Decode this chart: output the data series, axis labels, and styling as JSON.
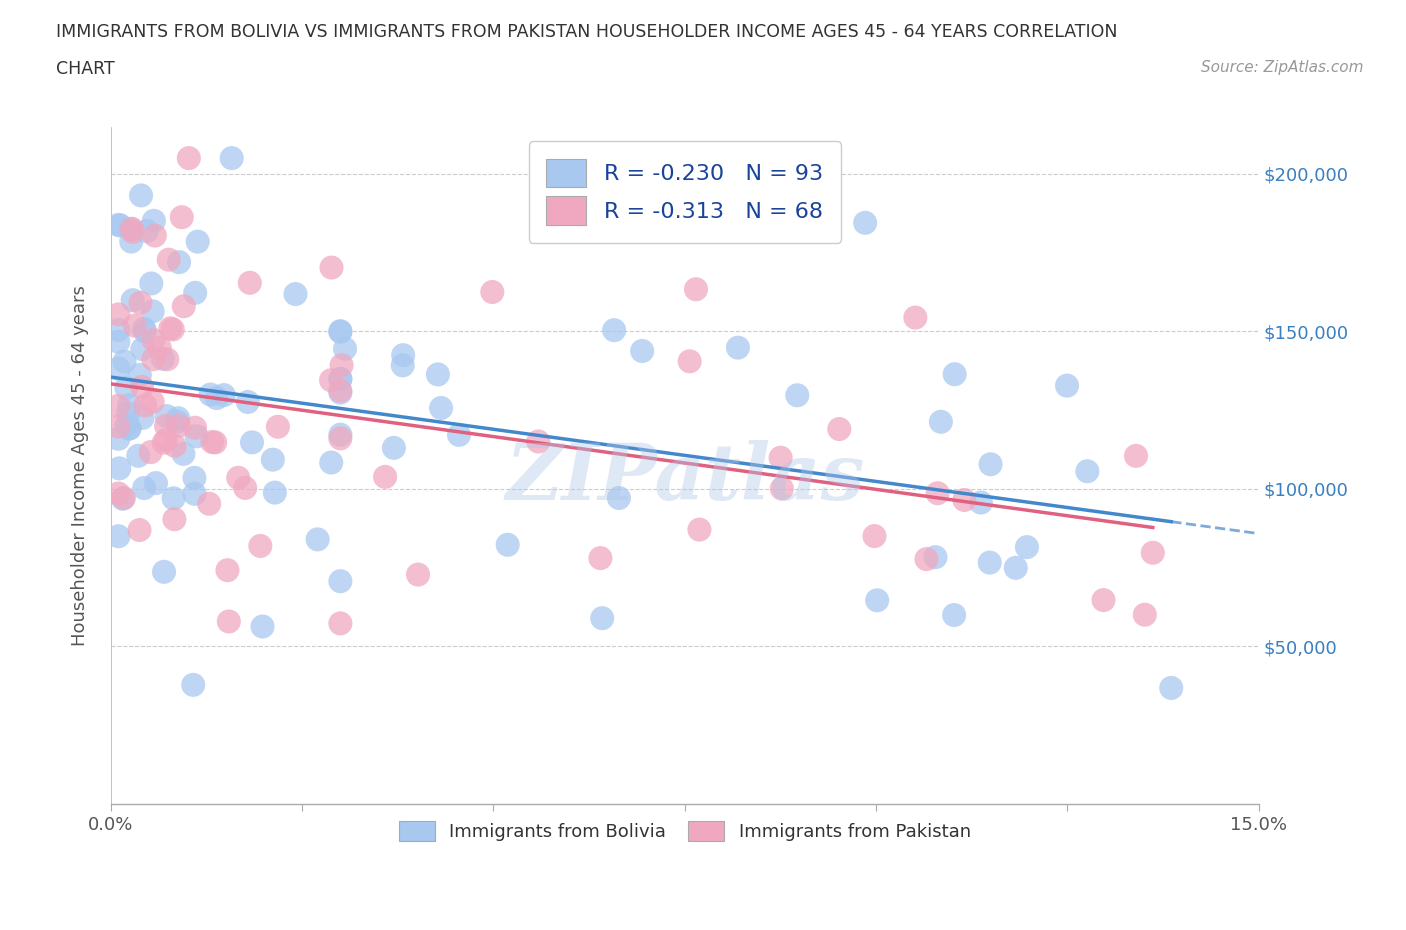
{
  "title_line1": "IMMIGRANTS FROM BOLIVIA VS IMMIGRANTS FROM PAKISTAN HOUSEHOLDER INCOME AGES 45 - 64 YEARS CORRELATION",
  "title_line2": "CHART",
  "source_text": "Source: ZipAtlas.com",
  "ylabel": "Householder Income Ages 45 - 64 years",
  "xmin": 0.0,
  "xmax": 0.15,
  "ymin": 0,
  "ymax": 215000,
  "yticks": [
    50000,
    100000,
    150000,
    200000
  ],
  "ytick_labels": [
    "$50,000",
    "$100,000",
    "$150,000",
    "$200,000"
  ],
  "xtick_positions": [
    0.0,
    0.025,
    0.05,
    0.075,
    0.1,
    0.125,
    0.15
  ],
  "xtick_labels": [
    "0.0%",
    "",
    "",
    "",
    "",
    "",
    "15.0%"
  ],
  "bolivia_color": "#a8c8f0",
  "pakistan_color": "#f0a8c0",
  "bolivia_line_color": "#4488cc",
  "pakistan_line_color": "#e06080",
  "R_bolivia": -0.23,
  "N_bolivia": 93,
  "R_pakistan": -0.313,
  "N_pakistan": 68,
  "legend_text_bolivia": "R = -0.230   N = 93",
  "legend_text_pakistan": "R = -0.313   N = 68",
  "watermark": "ZIPatlas",
  "tick_color": "#3a7fc1",
  "title_color": "#333333",
  "ylabel_color": "#555555"
}
